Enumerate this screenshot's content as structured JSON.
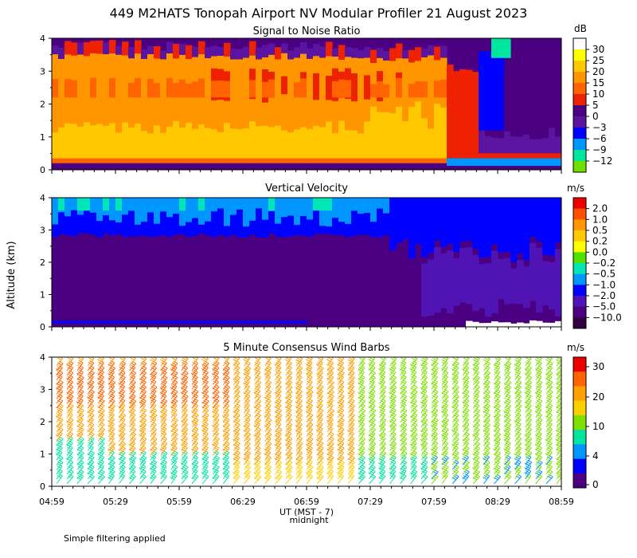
{
  "title": "449 M2HATS Tonopah Airport NV Modular Profiler 21 August 2023",
  "y_axis_label": "Altitude (km)",
  "x_axis_label": "UT (MST - 7)",
  "midnight_label": "midnight",
  "footnote": "Simple filtering applied",
  "x_ticks": [
    "04:59",
    "05:29",
    "05:59",
    "06:29",
    "06:59",
    "07:29",
    "07:59",
    "08:29",
    "08:59"
  ],
  "chart_data": [
    {
      "type": "heatmap",
      "title": "Signal to Noise Ratio",
      "units": "dB",
      "ylim": [
        0,
        4
      ],
      "y_ticks": [
        "0",
        "1",
        "2",
        "3",
        "4"
      ],
      "colorbar": {
        "labels": [
          "30",
          "25",
          "20",
          "15",
          "10",
          "5",
          "0",
          "−3",
          "−6",
          "−9",
          "−12"
        ],
        "colors": [
          "#ffffff",
          "#ffff00",
          "#ffc800",
          "#ff9600",
          "#ff6400",
          "#ee2200",
          "#4b0082",
          "#5a14a0",
          "#0000ff",
          "#0096ff",
          "#00e6a0",
          "#70e000"
        ]
      }
    },
    {
      "type": "heatmap",
      "title": "Vertical Velocity",
      "units": "m/s",
      "ylim": [
        0,
        4
      ],
      "y_ticks": [
        "0",
        "1",
        "2",
        "3",
        "4"
      ],
      "colorbar": {
        "labels": [
          "2.0",
          "1.0",
          "0.5",
          "0.2",
          "0.0",
          "−0.2",
          "−0.5",
          "−1.0",
          "−2.0",
          "−5.0",
          "−10.0"
        ],
        "colors": [
          "#ee0000",
          "#ff5000",
          "#ff9600",
          "#ffc800",
          "#ffff00",
          "#50e000",
          "#00e6b4",
          "#0096ff",
          "#0000ff",
          "#5014b4",
          "#4b0082",
          "#300040"
        ]
      }
    },
    {
      "type": "wind_barbs",
      "title": "5 Minute Consensus Wind Barbs",
      "units": "m/s",
      "ylim": [
        0,
        4
      ],
      "y_ticks": [
        "0",
        "1",
        "2",
        "3",
        "4"
      ],
      "colorbar": {
        "labels": [
          "30",
          "20",
          "10",
          "4",
          "0"
        ],
        "colors": [
          "#ee0000",
          "#ff6400",
          "#ffa000",
          "#ffd000",
          "#80e000",
          "#00e6a0",
          "#0096ff",
          "#0000ff",
          "#4b0082"
        ]
      }
    }
  ]
}
